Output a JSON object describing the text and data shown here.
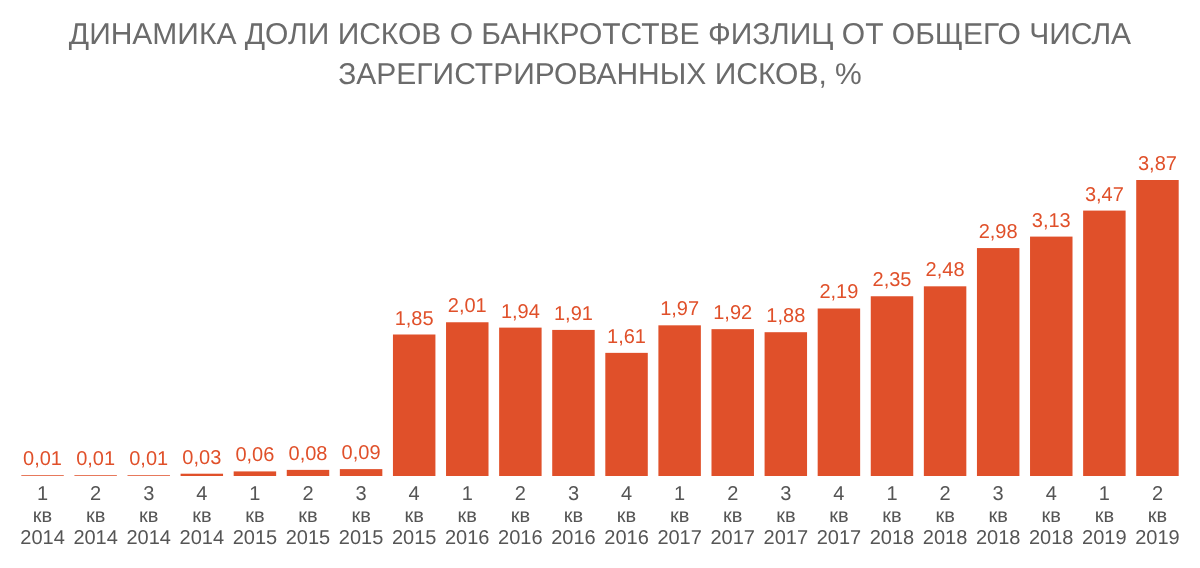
{
  "chart_data": {
    "type": "bar",
    "title": "ДИНАМИКА ДОЛИ ИСКОВ О БАНКРОТСТВЕ ФИЗЛИЦ ОТ ОБЩЕГО ЧИСЛА ЗАРЕГИСТРИРОВАННЫХ ИСКОВ, %",
    "categories": [
      "1 кв 2014",
      "2 кв 2014",
      "3 кв 2014",
      "4 кв 2014",
      "1 кв 2015",
      "2 кв 2015",
      "3 кв 2015",
      "4 кв 2015",
      "1 кв 2016",
      "2 кв 2016",
      "3 кв 2016",
      "4 кв 2016",
      "1 кв 2017",
      "2 кв 2017",
      "3 кв 2017",
      "4 кв 2017",
      "1 кв 2018",
      "2 кв 2018",
      "3 кв 2018",
      "4 кв 2018",
      "1 кв 2019",
      "2 кв 2019"
    ],
    "values": [
      0.01,
      0.01,
      0.01,
      0.03,
      0.06,
      0.08,
      0.09,
      1.85,
      2.01,
      1.94,
      1.91,
      1.61,
      1.97,
      1.92,
      1.88,
      2.19,
      2.35,
      2.48,
      2.98,
      3.13,
      3.47,
      3.87
    ],
    "value_labels": [
      "0,01",
      "0,01",
      "0,01",
      "0,03",
      "0,06",
      "0,08",
      "0,09",
      "1,85",
      "2,01",
      "1,94",
      "1,91",
      "1,61",
      "1,97",
      "1,92",
      "1,88",
      "2,19",
      "2,35",
      "2,48",
      "2,98",
      "3,13",
      "3,47",
      "3,87"
    ],
    "color": "#e0502a"
  }
}
